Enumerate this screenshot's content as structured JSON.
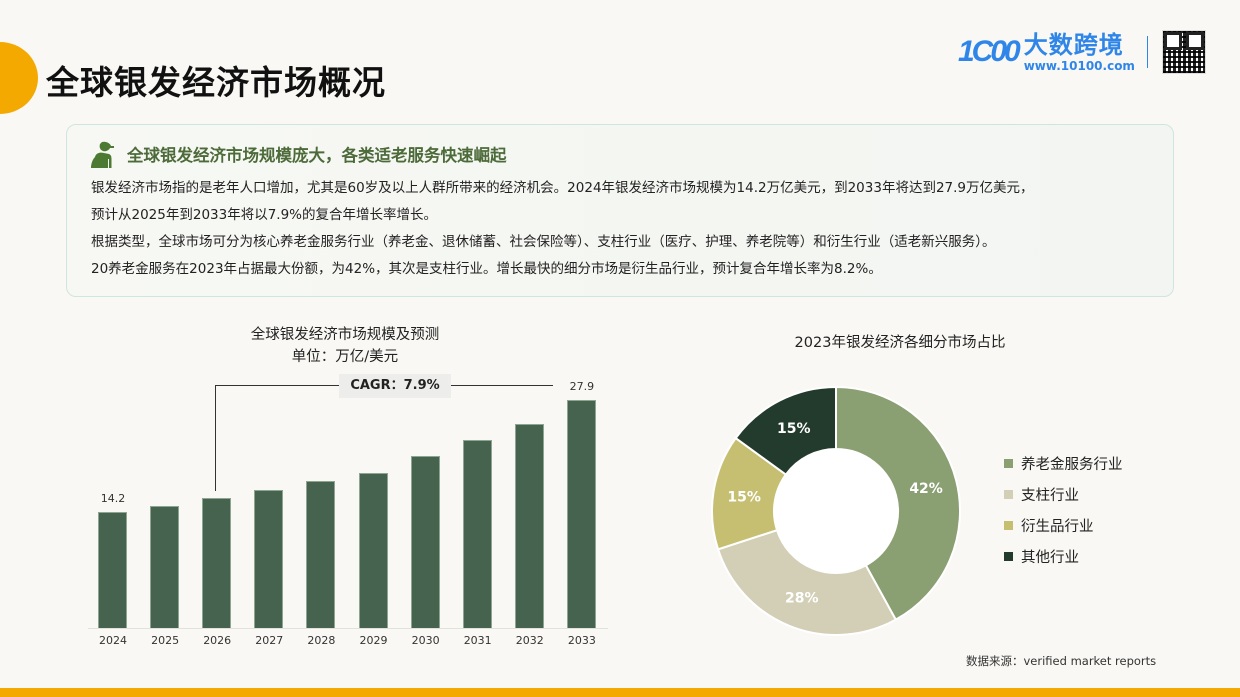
{
  "page": {
    "title": "全球银发经济市场概况",
    "accent_color": "#f4a900"
  },
  "logo": {
    "mark": "1C00",
    "name": "大数跨境",
    "url": "www.10100.com",
    "qr_icon": "qr-code-icon",
    "brand_color": "#2f86e8"
  },
  "summary": {
    "icon": "elderly-person-icon",
    "title": "全球银发经济市场规模庞大，各类适老服务快速崛起",
    "lines": [
      "银发经济市场指的是老年人口增加，尤其是60岁及以上人群所带来的经济机会。2024年银发经济市场规模为14.2万亿美元，到2033年将达到27.9万亿美元，",
      "预计从2025年到2033年将以7.9%的复合年增长率增长。",
      "根据类型，全球市场可分为核心养老金服务行业（养老金、退休储蓄、社会保险等）、支柱行业（医疗、护理、养老院等）和衍生行业（适老新兴服务）。",
      "20养老金服务在2023年占据最大份额，为42%，其次是支柱行业。增长最快的细分市场是衍生品行业，预计复合年增长率为8.2%。"
    ]
  },
  "bar_chart": {
    "title": "全球银发经济市场规模及预测",
    "subtitle": "单位：万亿/美元",
    "cagr_label": "CAGR：7.9%",
    "first_label": "14.2",
    "last_label": "27.9"
  },
  "pie_chart": {
    "title": "2023年银发经济各细分市场占比",
    "legend": [
      {
        "label": "养老金服务行业",
        "color": "#8a9f72"
      },
      {
        "label": "支柱行业",
        "color": "#d3cfb6"
      },
      {
        "label": "衍生品行业",
        "color": "#c6bf72"
      },
      {
        "label": "其他行业",
        "color": "#233b2d"
      }
    ]
  },
  "source": "数据来源：verified market reports",
  "chart_data": [
    {
      "type": "bar",
      "title": "全球银发经济市场规模及预测",
      "subtitle": "单位：万亿/美元",
      "xlabel": "",
      "ylabel": "万亿美元",
      "categories": [
        "2024",
        "2025",
        "2026",
        "2027",
        "2028",
        "2029",
        "2030",
        "2031",
        "2032",
        "2033"
      ],
      "values": [
        14.2,
        14.9,
        15.9,
        16.9,
        18.0,
        19.0,
        21.0,
        23.0,
        25.0,
        27.9
      ],
      "data_labels": {
        "2024": "14.2",
        "2033": "27.9"
      },
      "annotations": [
        "CAGR：7.9%"
      ],
      "bar_color": "#466350",
      "grid": false,
      "ylim": [
        0,
        30
      ]
    },
    {
      "type": "pie",
      "donut": true,
      "title": "2023年银发经济各细分市场占比",
      "categories": [
        "养老金服务行业",
        "支柱行业",
        "衍生品行业",
        "其他行业"
      ],
      "values": [
        42,
        28,
        15,
        15
      ],
      "labels": [
        "42%",
        "28%",
        "15%",
        "15%"
      ],
      "colors": [
        "#8a9f72",
        "#d3cfb6",
        "#c6bf72",
        "#233b2d"
      ],
      "legend_position": "right"
    }
  ]
}
